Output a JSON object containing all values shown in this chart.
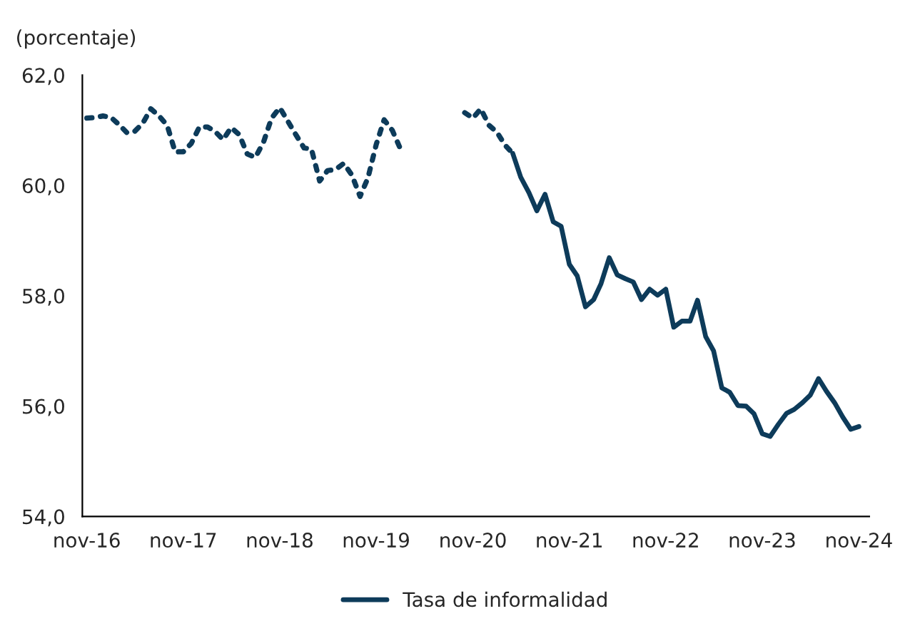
{
  "chart_data": {
    "type": "line",
    "ylabel": "(porcentaje)",
    "series": [
      {
        "color": "#0d3b5a",
        "line_style": "dotted",
        "x": [
          "2016-11",
          "2016-12",
          "2017-01",
          "2017-02",
          "2017-03",
          "2017-04",
          "2017-05",
          "2017-06",
          "2017-07",
          "2017-08",
          "2017-09",
          "2017-10",
          "2017-11",
          "2017-12",
          "2018-01",
          "2018-02",
          "2018-03",
          "2018-04",
          "2018-05",
          "2018-06",
          "2018-07",
          "2018-08",
          "2018-09",
          "2018-10",
          "2018-11",
          "2018-12",
          "2019-01",
          "2019-02",
          "2019-03",
          "2019-04",
          "2019-05",
          "2019-06",
          "2019-07",
          "2019-08",
          "2019-09",
          "2019-10",
          "2019-11",
          "2019-12",
          "2020-01",
          "2020-02",
          "2020-03",
          "2020-04",
          "2020-05",
          "2020-06",
          "2020-07",
          "2020-08",
          "2020-09",
          "2020-10",
          "2020-11",
          "2020-12",
          "2021-01",
          "2021-02",
          "2021-03",
          "2021-04"
        ],
        "values": [
          61.22,
          61.23,
          61.26,
          61.23,
          61.11,
          60.96,
          60.98,
          61.13,
          61.39,
          61.26,
          61.09,
          60.61,
          60.61,
          60.76,
          61.06,
          61.06,
          60.98,
          60.83,
          61.05,
          60.92,
          60.57,
          60.51,
          60.79,
          61.22,
          61.41,
          61.17,
          60.92,
          60.68,
          60.66,
          60.08,
          60.27,
          60.29,
          60.4,
          60.19,
          59.8,
          60.14,
          60.74,
          61.19,
          61.0,
          60.66,
          null,
          null,
          null,
          null,
          null,
          null,
          null,
          61.32,
          61.22,
          61.39,
          61.09,
          60.96,
          60.74,
          60.58
        ]
      },
      {
        "name": "Tasa de informalidad",
        "color": "#0d3b5a",
        "line_style": "solid",
        "x": [
          "2021-04",
          "2021-05",
          "2021-06",
          "2021-07",
          "2021-08",
          "2021-09",
          "2021-10",
          "2021-11",
          "2021-12",
          "2022-01",
          "2022-02",
          "2022-03",
          "2022-04",
          "2022-05",
          "2022-06",
          "2022-07",
          "2022-08",
          "2022-09",
          "2022-10",
          "2022-11",
          "2022-12",
          "2023-01",
          "2023-02",
          "2023-03",
          "2023-04",
          "2023-05",
          "2023-06",
          "2023-07",
          "2023-08",
          "2023-09",
          "2023-10",
          "2023-11",
          "2023-12",
          "2024-01",
          "2024-02",
          "2024-03",
          "2024-04",
          "2024-05",
          "2024-06",
          "2024-07",
          "2024-08",
          "2024-09",
          "2024-10",
          "2024-11"
        ],
        "values": [
          60.58,
          60.15,
          59.87,
          59.54,
          59.84,
          59.34,
          59.26,
          58.57,
          58.36,
          57.8,
          57.93,
          58.22,
          58.69,
          58.38,
          58.31,
          58.25,
          57.93,
          58.12,
          58.01,
          58.12,
          57.43,
          57.54,
          57.54,
          57.92,
          57.26,
          57.0,
          56.33,
          56.25,
          56.01,
          56.0,
          55.86,
          55.5,
          55.45,
          55.67,
          55.87,
          55.94,
          56.06,
          56.2,
          56.5,
          56.27,
          56.06,
          55.8,
          55.58,
          55.63
        ]
      }
    ],
    "xlim": [
      "2016-10-15",
      "2024-12-10"
    ],
    "xticks": [
      {
        "value": "2016-11",
        "label": "nov-16"
      },
      {
        "value": "2017-11",
        "label": "nov-17"
      },
      {
        "value": "2018-11",
        "label": "nov-18"
      },
      {
        "value": "2019-11",
        "label": "nov-19"
      },
      {
        "value": "2020-11",
        "label": "nov-20"
      },
      {
        "value": "2021-11",
        "label": "nov-21"
      },
      {
        "value": "2022-11",
        "label": "nov-22"
      },
      {
        "value": "2023-11",
        "label": "nov-23"
      },
      {
        "value": "2024-11",
        "label": "nov-24"
      }
    ],
    "ylim": [
      54,
      62
    ],
    "yticks": [
      {
        "value": 54,
        "label": "54,0"
      },
      {
        "value": 56,
        "label": "56,0"
      },
      {
        "value": 58,
        "label": "58,0"
      },
      {
        "value": 60,
        "label": "60,0"
      },
      {
        "value": 62,
        "label": "62,0"
      }
    ],
    "grid": false,
    "legend": "bottom"
  }
}
